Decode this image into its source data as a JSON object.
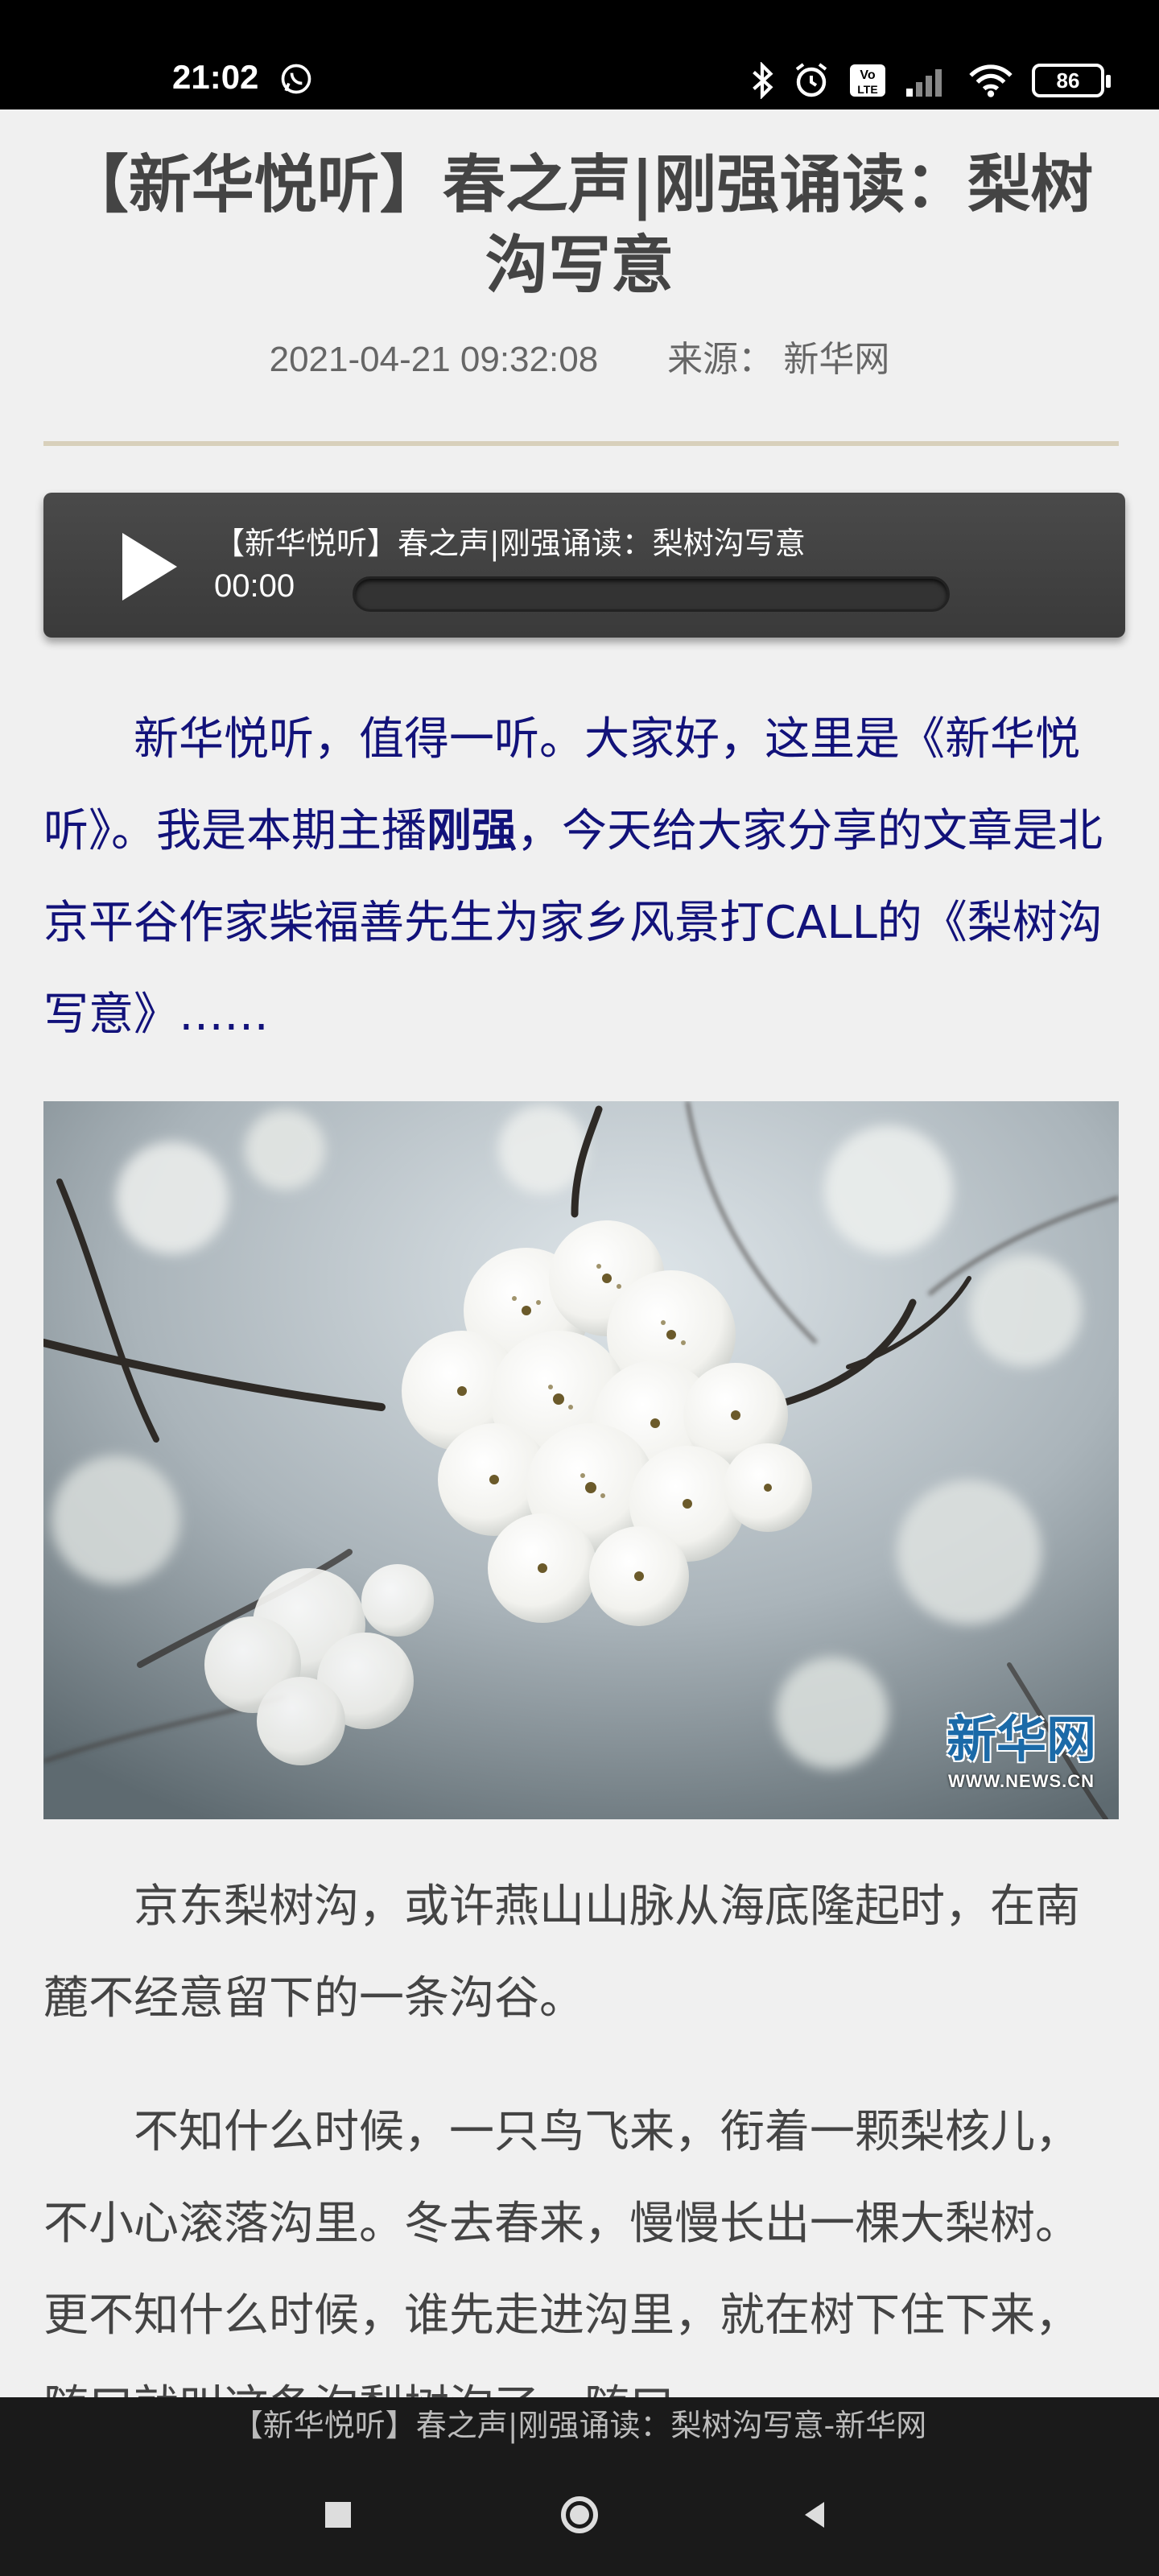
{
  "status_bar": {
    "time": "21:02",
    "battery_level": "86",
    "icons": [
      "whatsapp-icon",
      "bluetooth-icon",
      "alarm-icon",
      "volte-icon",
      "signal-icon",
      "wifi-icon",
      "battery-icon"
    ]
  },
  "article": {
    "title": "【新华悦听】春之声|刚强诵读：梨树沟写意",
    "date": "2021-04-21 09:32:08",
    "source": "来源： 新华网"
  },
  "audio_player": {
    "track_title": "【新华悦听】春之声|刚强诵读：梨树沟写意",
    "current_time": "00:00",
    "progress": 0
  },
  "intro": {
    "part1": "新华悦听，值得一听。大家好，这里是《新华悦听》。我是本期主播",
    "anchor": "刚强",
    "part2": "，今天给大家分享的文章是北京平谷作家柴福善先生为家乡风景打CALL的《梨树沟写意》……"
  },
  "photo": {
    "watermark_main": "新华网",
    "watermark_sub": "WWW.NEWS.CN"
  },
  "paragraphs": [
    "京东梨树沟，或许燕山山脉从海底隆起时，在南麓不经意留下的一条沟谷。",
    "不知什么时候，一只鸟飞来，衔着一颗梨核儿，不小心滚落沟里。冬去春来，慢慢长出一棵大梨树。更不知什么时候，谁先走进沟里，就在树下住下来，随口就叫这条沟梨树沟了。随口"
  ],
  "bottom_bar": {
    "page_title": "【新华悦听】春之声|刚强诵读：梨树沟写意-新华网"
  },
  "colors": {
    "link_text": "#12127a",
    "divider": "#d8d0bb",
    "player_bg": "#444444"
  }
}
